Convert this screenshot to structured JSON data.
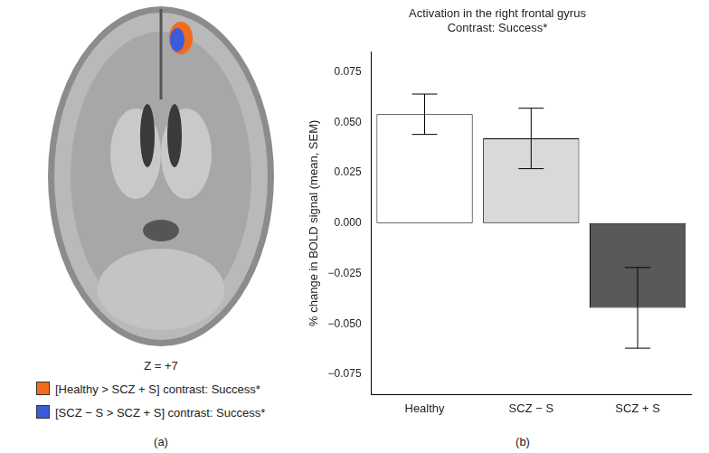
{
  "chart_data": {
    "type": "bar",
    "title": [
      "Activation in the right frontal gyrus",
      "Contrast: Success*"
    ],
    "y_label": "% change in BOLD signal (mean, SEM)",
    "categories": [
      "Healthy",
      "SCZ − S",
      "SCZ + S"
    ],
    "values": [
      0.054,
      0.042,
      -0.042
    ],
    "errors": [
      0.01,
      0.015,
      0.02
    ],
    "colors": [
      "#ffffff",
      "#d9d9d9",
      "#595959"
    ],
    "ylim": [
      -0.085,
      0.085
    ],
    "yticks": [
      {
        "value": -0.075,
        "label": "−0.075"
      },
      {
        "value": -0.05,
        "label": "−0.050"
      },
      {
        "value": -0.025,
        "label": "−0.025"
      },
      {
        "value": 0,
        "label": "0.000"
      },
      {
        "value": 0.025,
        "label": "0.025"
      },
      {
        "value": 0.05,
        "label": "0.050"
      },
      {
        "value": 0.075,
        "label": "0.075"
      }
    ],
    "grid": false,
    "panel_label": "(b)"
  },
  "panel_a": {
    "slice_label": "Z = +7",
    "legend": [
      {
        "name": "[Healthy > SCZ + S] contrast: Success*",
        "color": "#f26a1b"
      },
      {
        "name": "[SCZ − S > SCZ + S] contrast: Success*",
        "color": "#3b5bdb"
      }
    ],
    "panel_label": "(a)"
  }
}
